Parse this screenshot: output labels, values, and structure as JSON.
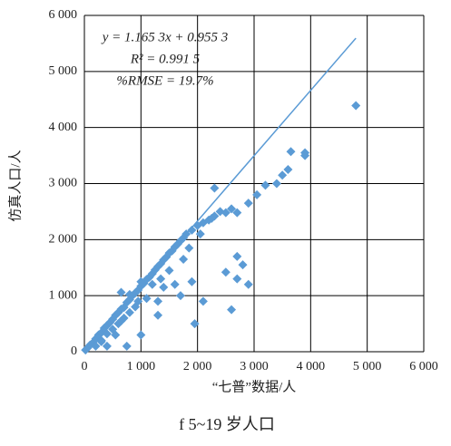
{
  "chart_data": {
    "type": "scatter",
    "title": "f 5~19 岁人口",
    "x_label": "“七普”数据/人",
    "y_label": "仿真人口/人",
    "annotations": [
      "y = 1.165 3x + 0.955 3",
      "R² = 0.991 5",
      "%RMSE = 19.7%"
    ],
    "color": "#5b9bd5",
    "grid": true,
    "xlim": [
      0,
      6000
    ],
    "ylim": [
      0,
      6000
    ],
    "xticks": [
      0,
      {
        "value": 1000,
        "label": "1 000"
      },
      {
        "value": 2000,
        "label": "2 000"
      },
      {
        "value": 3000,
        "label": "3 000"
      },
      {
        "value": 4000,
        "label": "4 000"
      },
      {
        "value": 5000,
        "label": "5 000"
      },
      {
        "value": 6000,
        "label": "6 000"
      }
    ],
    "yticks": [
      0,
      {
        "value": 1000,
        "label": "1 000"
      },
      {
        "value": 2000,
        "label": "2 000"
      },
      {
        "value": 3000,
        "label": "3 000"
      },
      {
        "value": 4000,
        "label": "4 000"
      },
      {
        "value": 5000,
        "label": "5 000"
      },
      {
        "value": 6000,
        "label": "6 000"
      }
    ],
    "trendline": {
      "slope": 1.1653,
      "intercept": 0.9553,
      "xrange": [
        0,
        4800
      ]
    },
    "x": [
      20,
      60,
      100,
      150,
      200,
      250,
      300,
      350,
      400,
      450,
      500,
      550,
      600,
      650,
      700,
      750,
      800,
      850,
      900,
      950,
      1000,
      1050,
      1100,
      1150,
      1200,
      1250,
      1300,
      1350,
      1400,
      1450,
      1500,
      1550,
      1600,
      1650,
      1700,
      1750,
      1800,
      1900,
      2000,
      2100,
      2200,
      2300,
      2400,
      2500,
      2600,
      2250,
      1200,
      900,
      600,
      400,
      1500,
      1750,
      1100,
      800,
      2050,
      500,
      300,
      1350,
      950,
      700,
      4800,
      3900,
      3900,
      3650,
      3600,
      3500,
      3400,
      3200,
      3050,
      2900,
      2700,
      1850,
      2300,
      2700,
      2800,
      2700,
      2900,
      2500,
      2600,
      1900,
      2100,
      1950,
      1600,
      1300,
      1300,
      1000,
      650,
      800,
      550,
      750,
      1000,
      400,
      200,
      300,
      650,
      1400,
      1700
    ],
    "y": [
      30,
      70,
      120,
      160,
      230,
      300,
      340,
      420,
      470,
      520,
      580,
      650,
      700,
      760,
      790,
      880,
      930,
      1000,
      1050,
      1100,
      1170,
      1220,
      1290,
      1330,
      1390,
      1460,
      1520,
      1570,
      1640,
      1690,
      1760,
      1800,
      1870,
      1920,
      1980,
      2030,
      2100,
      2170,
      2250,
      2300,
      2350,
      2420,
      2500,
      2480,
      2550,
      2380,
      1200,
      800,
      500,
      320,
      1450,
      1650,
      950,
      700,
      2100,
      400,
      200,
      1300,
      900,
      600,
      4390,
      3550,
      3500,
      3570,
      3250,
      3150,
      3000,
      2970,
      2800,
      2650,
      2480,
      1850,
      2920,
      1700,
      1550,
      1300,
      1200,
      1420,
      750,
      1250,
      900,
      500,
      1200,
      650,
      900,
      1250,
      1060,
      1020,
      300,
      100,
      300,
      100,
      100,
      180,
      550,
      1150,
      1000
    ]
  }
}
